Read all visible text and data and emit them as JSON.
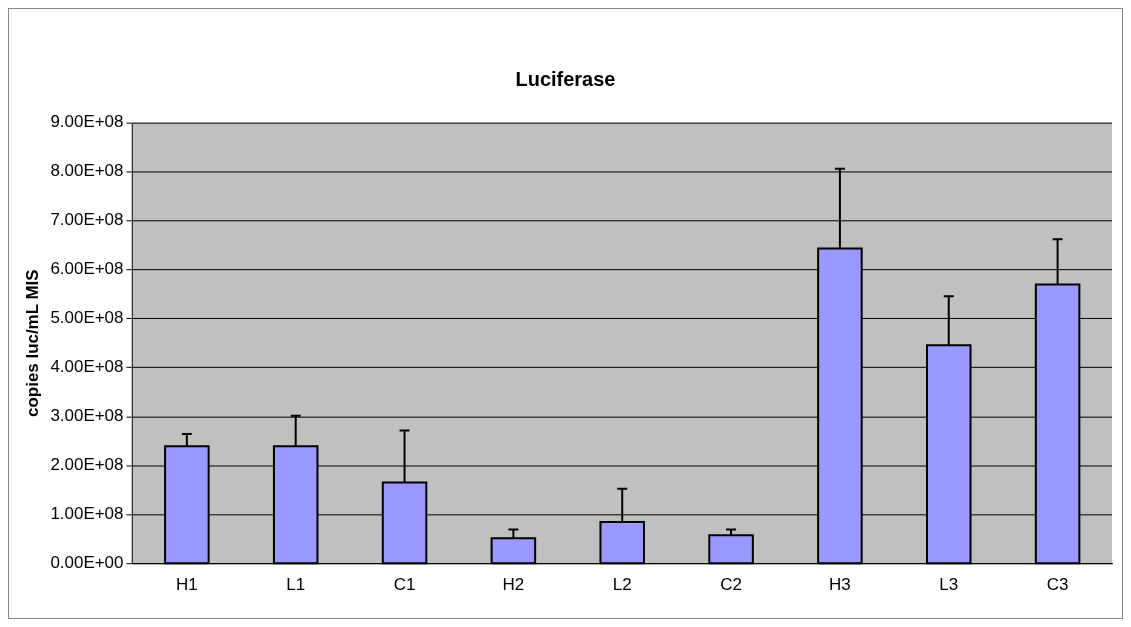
{
  "chart_data": {
    "type": "bar",
    "title": "Luciferase",
    "ylabel": "copies luc/mL MIS",
    "categories": [
      "H1",
      "L1",
      "C1",
      "H2",
      "L2",
      "C2",
      "H3",
      "L3",
      "C3"
    ],
    "values": [
      240000000,
      240000000,
      166000000,
      52000000,
      85000000,
      58000000,
      643000000,
      446000000,
      570000000
    ],
    "errors": [
      [
        240000000,
        265000000
      ],
      [
        240000000,
        302000000
      ],
      [
        166000000,
        272000000
      ],
      [
        52000000,
        70000000
      ],
      [
        85000000,
        153000000
      ],
      [
        58000000,
        70000000
      ],
      [
        643000000,
        806000000
      ],
      [
        446000000,
        546000000
      ],
      [
        570000000,
        662000000
      ]
    ],
    "color": "#9999ff",
    "ylim": [
      0,
      900000000
    ],
    "yticks": [
      {
        "value": 0,
        "label": "0.00E+00"
      },
      {
        "value": 100000000,
        "label": "1.00E+08"
      },
      {
        "value": 200000000,
        "label": "2.00E+08"
      },
      {
        "value": 300000000,
        "label": "3.00E+08"
      },
      {
        "value": 400000000,
        "label": "4.00E+08"
      },
      {
        "value": 500000000,
        "label": "5.00E+08"
      },
      {
        "value": 600000000,
        "label": "6.00E+08"
      },
      {
        "value": 700000000,
        "label": "7.00E+08"
      },
      {
        "value": 800000000,
        "label": "8.00E+08"
      },
      {
        "value": 900000000,
        "label": "9.00E+08"
      }
    ],
    "grid": "y",
    "legend": false
  }
}
